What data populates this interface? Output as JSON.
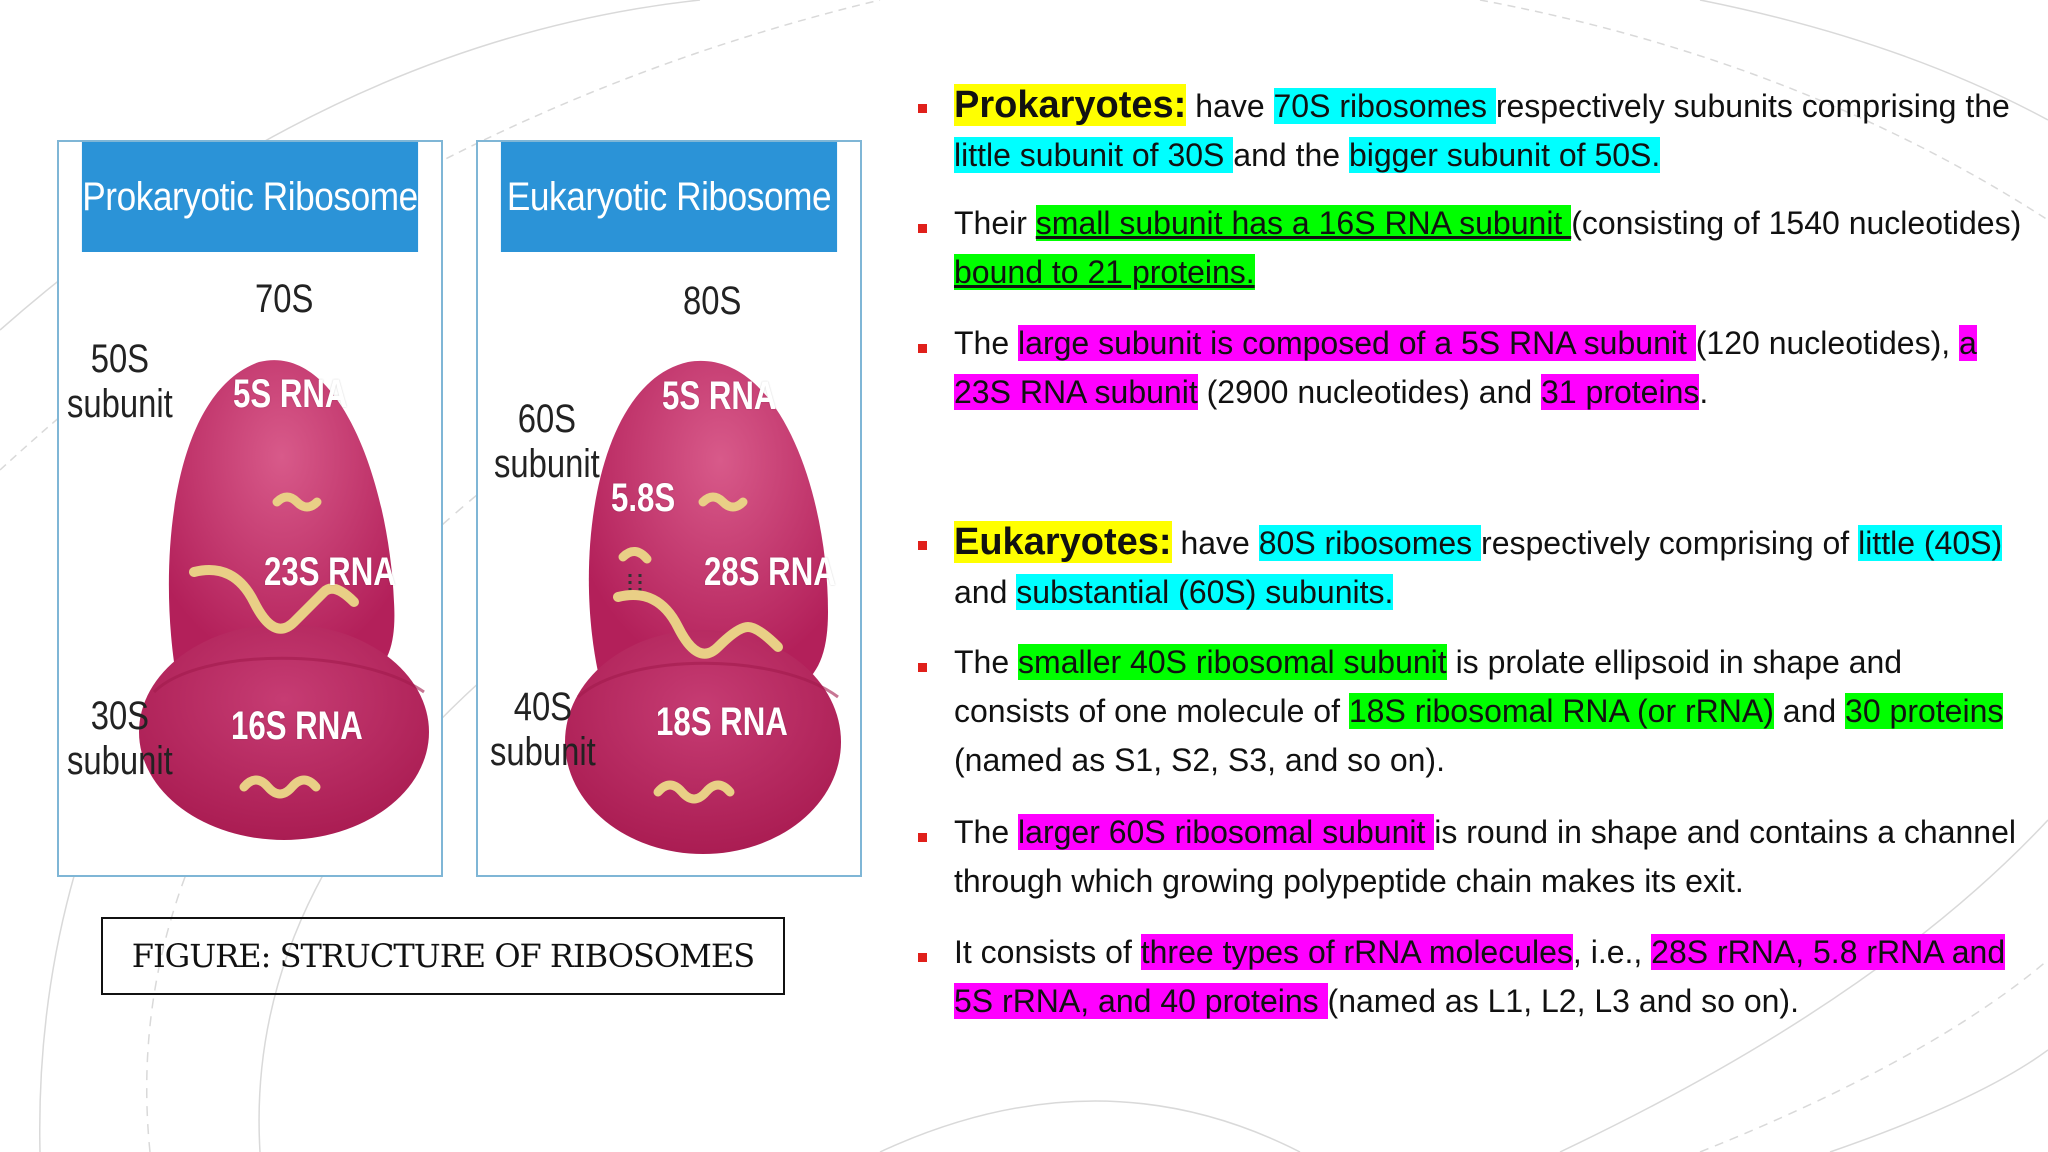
{
  "colors": {
    "header_blue": "#2b93d7",
    "ribosome_pink": "#c0275f",
    "rna_strand": "#e9cf86",
    "bullet_red": "#e0201b",
    "highlight_yellow": "#ffff00",
    "highlight_cyan": "#00ffff",
    "highlight_green": "#00ff00",
    "highlight_magenta": "#ff00ff"
  },
  "figure": {
    "prokaryotic": {
      "title": "Prokaryotic Ribosome",
      "total": "70S",
      "large_label": "50S\nsubunit",
      "small_label": "30S\nsubunit",
      "rna_top": "5S RNA",
      "rna_mid": "23S RNA",
      "rna_bottom": "16S RNA"
    },
    "eukaryotic": {
      "title": "Eukaryotic Ribosome",
      "total": "80S",
      "large_label": "60S\nsubunit",
      "small_label": "40S\nsubunit",
      "rna_top": "5S RNA",
      "rna_58": "5.8S",
      "rna_mid": "28S RNA",
      "rna_bottom": "18S RNA"
    },
    "caption": "FIGURE: STRUCTURE OF RIBOSOMES"
  },
  "bullets": {
    "b1": {
      "s1": "Prokaryotes:",
      "s2": " have ",
      "s3": "70S ribosomes ",
      "s4": "respectively subunits comprising the ",
      "s5": "little subunit of 30S ",
      "s6": "and the ",
      "s7": "bigger subunit of 50S."
    },
    "b2": {
      "s1": "Their ",
      "s2": "small subunit has a 16S RNA subunit ",
      "s3": "(consisting of 1540 nucleotides) ",
      "s4": "bound to 21 proteins."
    },
    "b3": {
      "s1": "The ",
      "s2": "large subunit is composed of a 5S RNA subunit ",
      "s3": "(120 nucleotides), ",
      "s4": "a 23S RNA subunit",
      "s5": " (2900 nucleotides) and ",
      "s6": "31 proteins",
      "s7": "."
    },
    "b4": {
      "s1": "Eukaryotes:",
      "s2": " have ",
      "s3": "80S ribosomes ",
      "s4": "respectively comprising of ",
      "s5": "little (40S)",
      "s6": " and ",
      "s7": "substantial (60S) subunits."
    },
    "b5": {
      "s1": "The ",
      "s2": "smaller 40S ribosomal subunit",
      "s3": " is prolate ellipsoid in shape and consists of one molecule of ",
      "s4": "18S ribosomal RNA (or rRNA)",
      "s5": " and ",
      "s6": "30 proteins ",
      "s7": "(named as S1, S2, S3, and so on)."
    },
    "b6": {
      "s1": "The ",
      "s2": "larger 60S ribosomal subunit ",
      "s3": "is round in shape and contains a channel through which growing polypeptide chain makes its exit."
    },
    "b7": {
      "s1": "It consists of ",
      "s2": "three types of rRNA molecules",
      "s3": ", i.e., ",
      "s4": "28S rRNA, 5.8 rRNA and 5S rRNA, and 40 proteins ",
      "s5": "(named as L1, L2, L3 and so on)."
    }
  }
}
